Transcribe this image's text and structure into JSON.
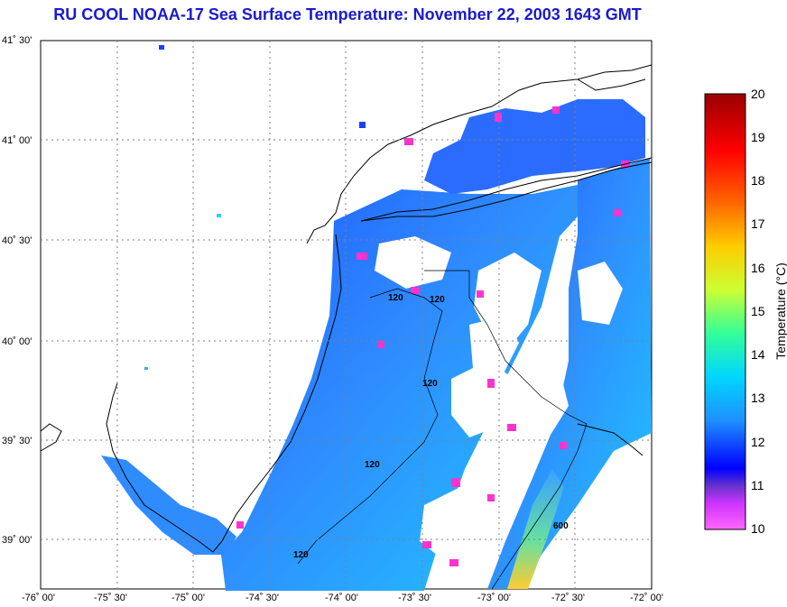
{
  "title": "RU COOL  NOAA-17  Sea Surface Temperature:  November 22, 2003 1643 GMT",
  "map": {
    "lon_labels": [
      "-76˚ 00'",
      "-75˚ 30'",
      "-75˚ 00'",
      "-74˚ 30'",
      "-74˚ 00'",
      "-73˚ 30'",
      "-73˚ 00'",
      "-72˚ 30'",
      "-72˚ 00'"
    ],
    "lat_labels": [
      "41˚ 30'",
      "41˚ 00'",
      "40˚ 30'",
      "40˚ 00'",
      "39˚ 30'",
      "39˚ 00'"
    ],
    "contour_labels": [
      "120",
      "120",
      "120",
      "120",
      "120",
      "600"
    ],
    "colors": {
      "land_outline": "#000000",
      "grid": "#808080",
      "sst_low": "#ff33cc",
      "sst_mid": "#2a7fff",
      "sst_high": "#00ccff"
    }
  },
  "colorbar": {
    "ticks": [
      "20",
      "19",
      "18",
      "17",
      "16",
      "15",
      "14",
      "13",
      "12",
      "11",
      "10"
    ],
    "label": "Temperature (°C)",
    "range": [
      10,
      20
    ],
    "stops": [
      "#ff66ff",
      "#6633cc",
      "#0000ff",
      "#1e90ff",
      "#00d6ff",
      "#33ff99",
      "#ccff33",
      "#ffcc00",
      "#ff6600",
      "#ff0000",
      "#990000"
    ]
  }
}
